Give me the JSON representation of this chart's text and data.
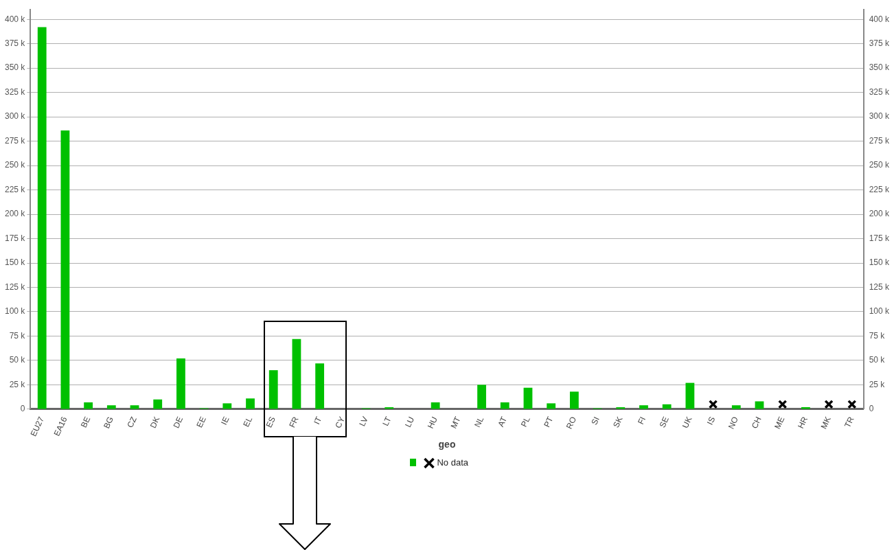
{
  "chart_data": {
    "type": "bar",
    "legend_title": "geo",
    "legend": "bottom",
    "grid": "y",
    "categories": [
      "EU27",
      "EA16",
      "BE",
      "BG",
      "CZ",
      "DK",
      "DE",
      "EE",
      "IE",
      "EL",
      "ES",
      "FR",
      "IT",
      "CY",
      "LV",
      "LT",
      "LU",
      "HU",
      "MT",
      "NL",
      "AT",
      "PL",
      "PT",
      "RO",
      "SI",
      "SK",
      "FI",
      "SE",
      "UK",
      "IS",
      "NO",
      "CH",
      "ME",
      "HR",
      "MK",
      "TR"
    ],
    "series": [
      {
        "color": "#00c000",
        "values": [
          392000,
          286000,
          7000,
          4000,
          4000,
          10000,
          52000,
          1000,
          6000,
          11000,
          40000,
          72000,
          47000,
          0,
          1000,
          2000,
          0,
          7000,
          0,
          25000,
          7000,
          22000,
          6000,
          18000,
          1000,
          2000,
          4000,
          5000,
          27000,
          null,
          4000,
          8000,
          null,
          2000,
          null,
          null
        ]
      },
      {
        "name": "No data",
        "type": "scatter",
        "marker": "cross",
        "color": "#000000",
        "x": [
          "IS",
          "ME",
          "MK",
          "TR"
        ],
        "values": [
          5000,
          5000,
          5000,
          5000
        ]
      }
    ],
    "ylim": [
      0,
      410000
    ],
    "yticks": [
      0,
      {
        "value": 25000,
        "label": "25 k"
      },
      {
        "value": 50000,
        "label": "50 k"
      },
      {
        "value": 75000,
        "label": "75 k"
      },
      {
        "value": 100000,
        "label": "100 k"
      },
      {
        "value": 125000,
        "label": "125 k"
      },
      {
        "value": 150000,
        "label": "150 k"
      },
      {
        "value": 175000,
        "label": "175 k"
      },
      {
        "value": 200000,
        "label": "200 k"
      },
      {
        "value": 225000,
        "label": "225 k"
      },
      {
        "value": 250000,
        "label": "250 k"
      },
      {
        "value": 275000,
        "label": "275 k"
      },
      {
        "value": 300000,
        "label": "300 k"
      },
      {
        "value": 325000,
        "label": "325 k"
      },
      {
        "value": 350000,
        "label": "350 k"
      },
      {
        "value": 375000,
        "label": "375 k"
      },
      {
        "value": 400000,
        "label": "400 k"
      }
    ],
    "y2lim": [
      0,
      410000
    ],
    "y2ticks": [
      0,
      {
        "value": 25000,
        "label": "25 k"
      },
      {
        "value": 50000,
        "label": "50 k"
      },
      {
        "value": 75000,
        "label": "75 k"
      },
      {
        "value": 100000,
        "label": "100 k"
      },
      {
        "value": 125000,
        "label": "125 k"
      },
      {
        "value": 150000,
        "label": "150 k"
      },
      {
        "value": 175000,
        "label": "175 k"
      },
      {
        "value": 200000,
        "label": "200 k"
      },
      {
        "value": 225000,
        "label": "225 k"
      },
      {
        "value": 250000,
        "label": "250 k"
      },
      {
        "value": 275000,
        "label": "275 k"
      },
      {
        "value": 300000,
        "label": "300 k"
      },
      {
        "value": 325000,
        "label": "325 k"
      },
      {
        "value": 350000,
        "label": "350 k"
      },
      {
        "value": 375000,
        "label": "375 k"
      },
      {
        "value": 400000,
        "label": "400 k"
      }
    ]
  }
}
